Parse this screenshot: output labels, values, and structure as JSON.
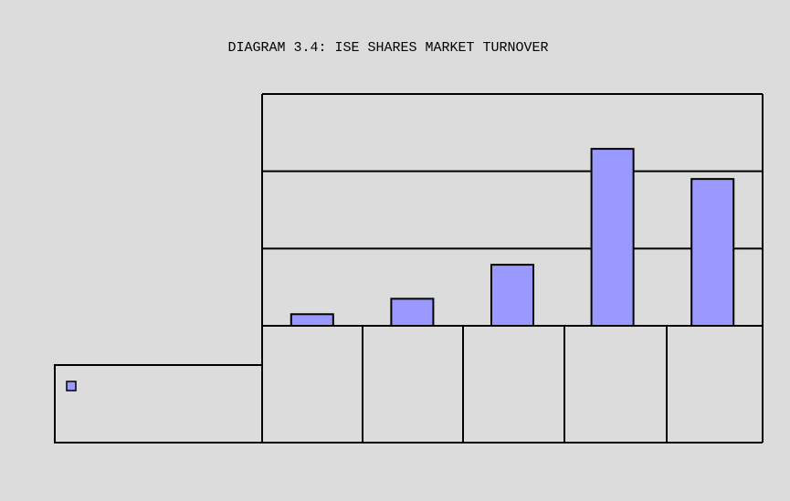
{
  "chart_data": {
    "type": "bar",
    "title": "DIAGRAM 3.4: ISE SHARES MARKET TURNOVER",
    "categories": [
      null,
      null,
      null,
      null,
      null
    ],
    "values": [
      0.15,
      0.35,
      0.79,
      2.29,
      1.9
    ],
    "color": "#9999ff",
    "ylim": [
      0,
      3
    ],
    "yticks": [
      0,
      1,
      2,
      3
    ],
    "grid": true
  }
}
